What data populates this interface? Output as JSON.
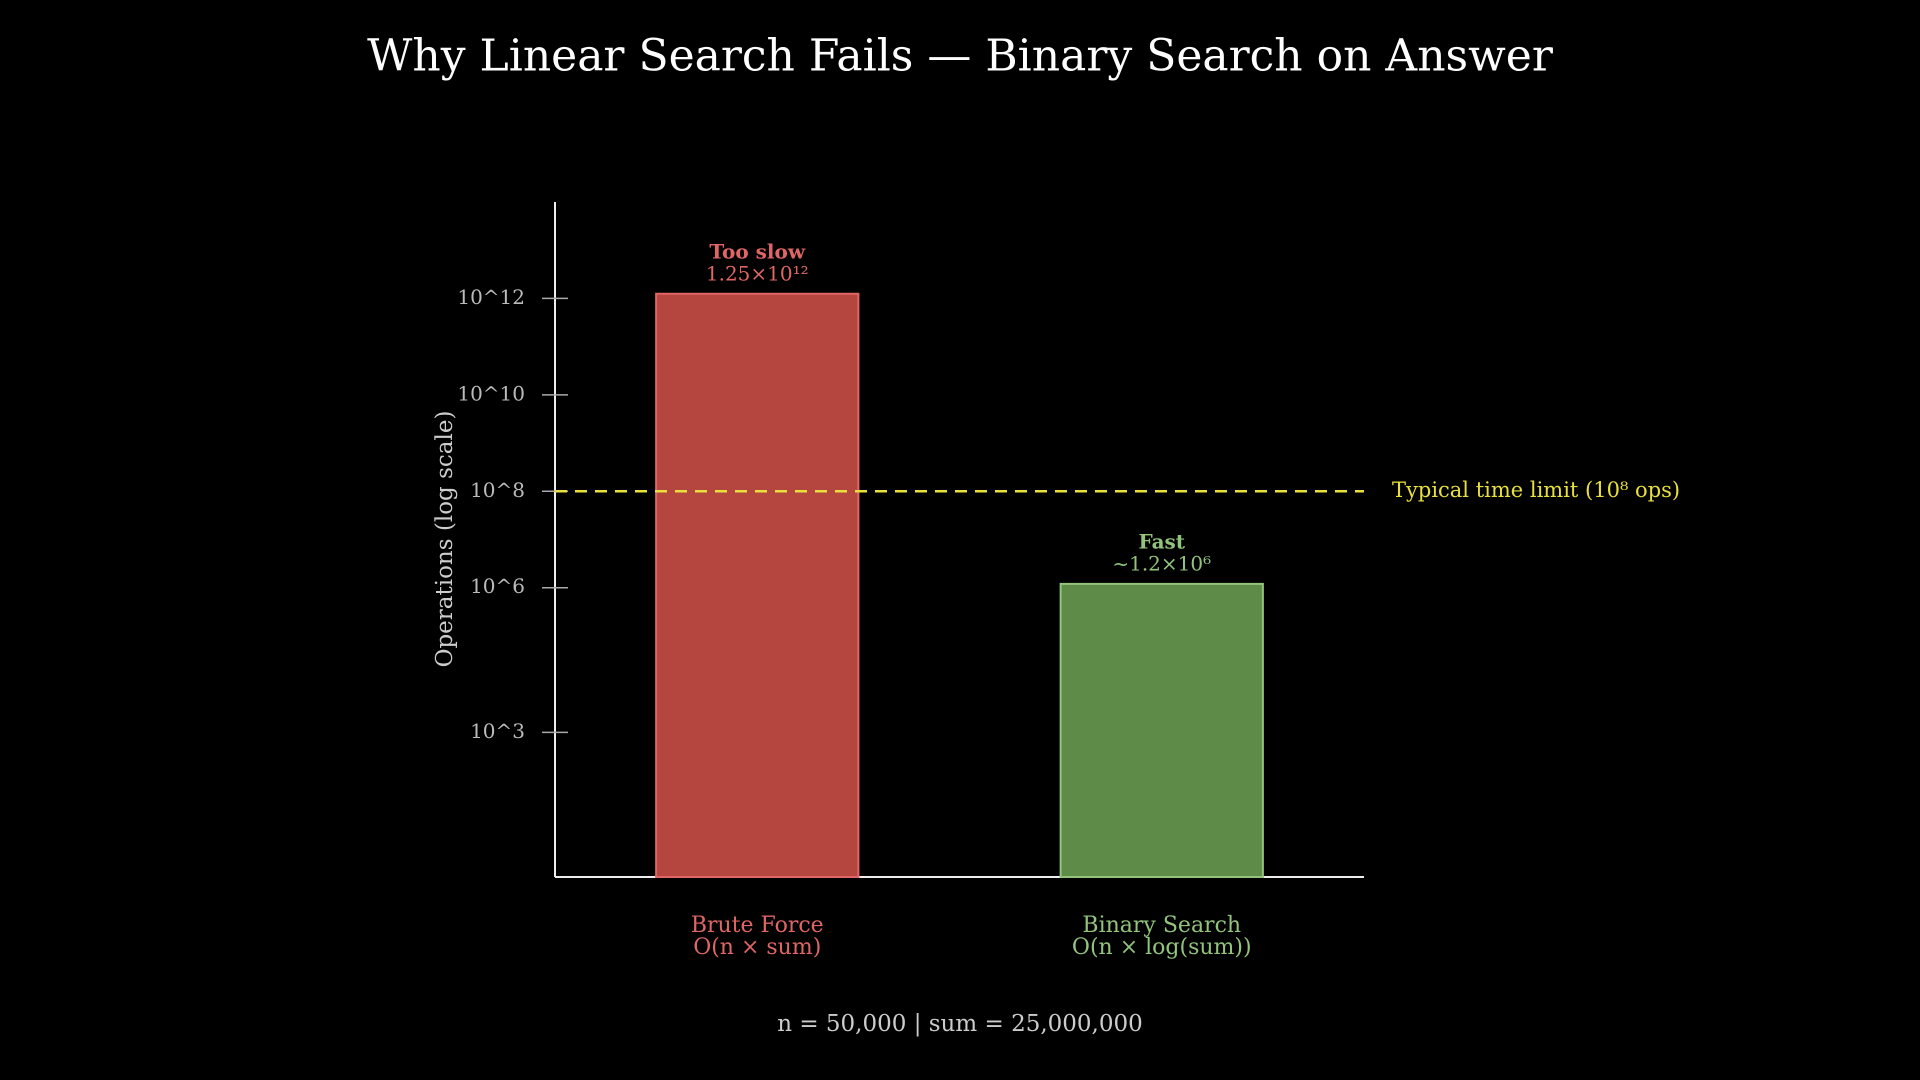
{
  "chart_data": {
    "type": "bar",
    "title": "Why Linear Search Fails — Binary Search on Answer",
    "ylabel": "Operations (log scale)",
    "categories": [
      "Brute Force",
      "Binary Search"
    ],
    "complexities": [
      "O(n × sum)",
      "O(n × log(sum))"
    ],
    "values": [
      1250000000000,
      1200000
    ],
    "value_labels": [
      "1.25×10¹²",
      "~1.2×10⁶"
    ],
    "annotations": [
      "Too slow",
      "Fast"
    ],
    "colors": [
      "#b5453f",
      "#5e8b47"
    ],
    "edge_colors": [
      "#e06666",
      "#93c47d"
    ],
    "log_scale": true,
    "ylim": [
      1,
      100000000000000
    ],
    "yticks": [
      {
        "value": 1000,
        "label": "10^3"
      },
      {
        "value": 1000000,
        "label": "10^6"
      },
      {
        "value": 100000000,
        "label": "10^8"
      },
      {
        "value": 10000000000,
        "label": "10^10"
      },
      {
        "value": 1000000000000,
        "label": "10^12"
      }
    ],
    "threshold": {
      "value": 100000000,
      "label": "Typical time limit (10⁸ ops)",
      "color": "#e8e03c"
    },
    "footnote": "n = 50,000 | sum = 25,000,000"
  }
}
